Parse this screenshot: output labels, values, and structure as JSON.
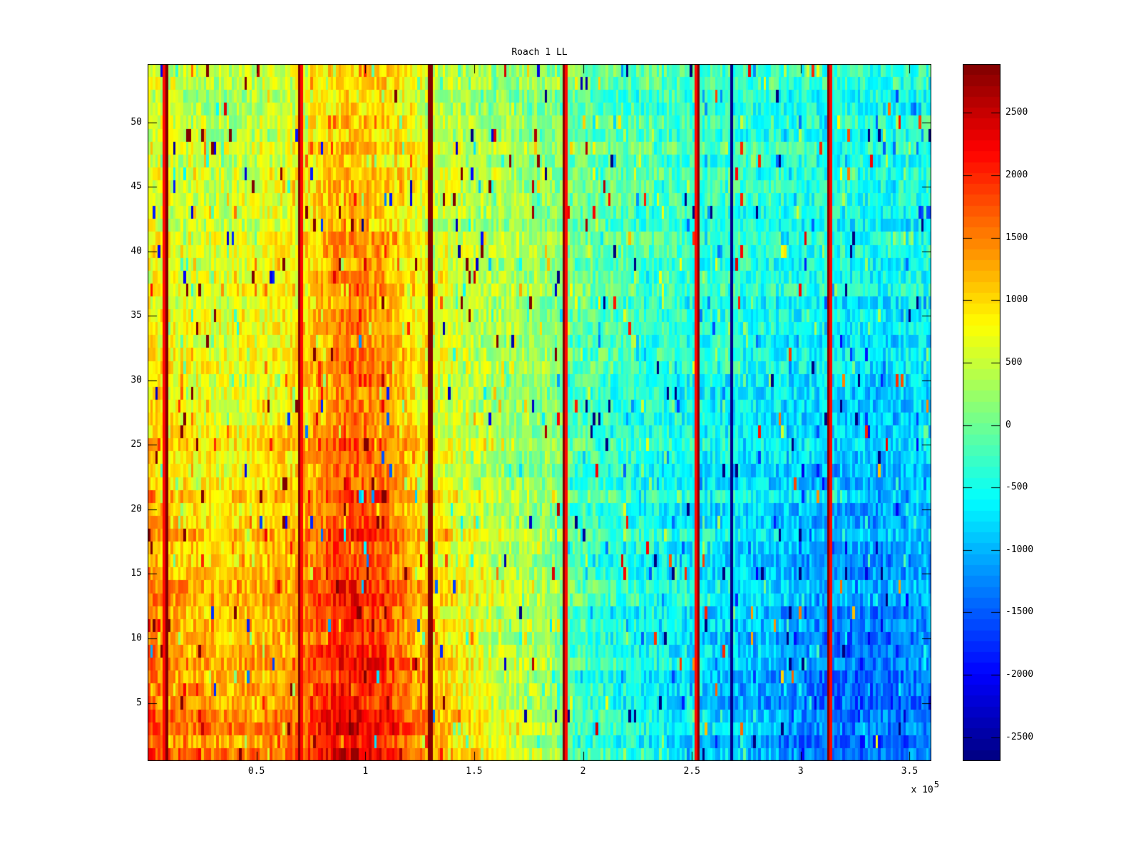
{
  "figure": {
    "title": "Roach 1 LL",
    "background_color": "#ffffff",
    "axis_color": "#000000"
  },
  "x_axis": {
    "tick_labels": [
      "0.5",
      "1",
      "1.5",
      "2",
      "2.5",
      "3",
      "3.5"
    ],
    "tick_values": [
      50000,
      100000,
      150000,
      200000,
      250000,
      300000,
      350000
    ],
    "range": [
      0,
      360000
    ],
    "exponent_prefix": "x 10",
    "exponent": "5"
  },
  "y_axis": {
    "tick_labels": [
      "5",
      "10",
      "15",
      "20",
      "25",
      "30",
      "35",
      "40",
      "45",
      "50"
    ],
    "tick_values": [
      5,
      10,
      15,
      20,
      25,
      30,
      35,
      40,
      45,
      50
    ],
    "range": [
      0.5,
      54.5
    ]
  },
  "colorbar": {
    "tick_labels": [
      "2500",
      "2000",
      "1500",
      "1000",
      "500",
      "0",
      "-500",
      "-1000",
      "-1500",
      "-2000",
      "-2500"
    ],
    "tick_values": [
      2500,
      2000,
      1500,
      1000,
      500,
      0,
      -500,
      -1000,
      -1500,
      -2000,
      -2500
    ],
    "value_range": [
      -2690,
      2890
    ],
    "colormap": "jet",
    "steps": 64
  },
  "chart_data": {
    "type": "heatmap",
    "title": "Roach 1 LL",
    "xlabel": "",
    "ylabel": "",
    "x_range": [
      0,
      360000
    ],
    "y_range": [
      0.5,
      54.5
    ],
    "n_rows": 54,
    "n_cols": 308,
    "colormap": "jet",
    "color_range": [
      -2690,
      2890
    ],
    "legend": "colorbar-right",
    "grid": false,
    "value_field": {
      "comment": "coarse mean field of the heatmap, bilinearly interpolated; x_nodes are fractions of plot width (left=0), y_nodes are fractions of plot height (top=0); values in colorbar units",
      "x_nodes": [
        0,
        0.02,
        0.1,
        0.19,
        0.25,
        0.3,
        0.36,
        0.44,
        0.52,
        0.54,
        0.62,
        0.7,
        0.74,
        0.8,
        0.87,
        0.94,
        1.0
      ],
      "y_nodes": [
        0,
        0.1667,
        0.3333,
        0.5,
        0.6667,
        0.8333,
        1.0
      ],
      "values": [
        [
          650,
          520,
          320,
          600,
          1050,
          1000,
          500,
          250,
          120,
          20,
          -120,
          -250,
          -280,
          -330,
          -380,
          -390,
          -350
        ],
        [
          700,
          560,
          420,
          700,
          1200,
          1100,
          560,
          290,
          140,
          0,
          -160,
          -300,
          -340,
          -400,
          -470,
          -490,
          -440
        ],
        [
          850,
          700,
          550,
          850,
          1420,
          1300,
          640,
          330,
          160,
          -40,
          -220,
          -380,
          -430,
          -500,
          -590,
          -630,
          -560
        ],
        [
          1150,
          950,
          700,
          1000,
          1700,
          1550,
          750,
          400,
          180,
          -80,
          -300,
          -470,
          -530,
          -620,
          -740,
          -800,
          -710
        ],
        [
          1450,
          1200,
          980,
          1200,
          1950,
          1750,
          900,
          480,
          220,
          -120,
          -380,
          -570,
          -650,
          -780,
          -950,
          -1020,
          -900
        ],
        [
          1700,
          1400,
          1180,
          1400,
          2150,
          1950,
          1100,
          560,
          260,
          -160,
          -460,
          -680,
          -800,
          -980,
          -1250,
          -1300,
          -1130
        ],
        [
          1900,
          1600,
          1350,
          1550,
          2350,
          2100,
          1300,
          650,
          300,
          -200,
          -550,
          -800,
          -950,
          -1200,
          -1500,
          -1520,
          -1350
        ]
      ]
    },
    "noise": {
      "seed": 42,
      "cell_amplitude": 420,
      "spike_probability": 0.1,
      "spike_amplitude": 900,
      "outlier_probability": 0.01,
      "outlier_low": -2800,
      "outlier_high": 2500,
      "row_offset_amplitude": 160
    },
    "stripes": [
      {
        "x_frac": 0.0237,
        "value": 2860,
        "halo": 2150
      },
      {
        "x_frac": 0.1938,
        "value": 2860,
        "halo": 2150
      },
      {
        "x_frac": 0.3603,
        "value": 2860,
        "halo": 2150
      },
      {
        "x_frac": 0.5323,
        "value": 2860,
        "halo": 2150
      },
      {
        "x_frac": 0.7016,
        "value": 2860,
        "halo": 2150
      },
      {
        "x_frac": 0.8699,
        "value": 2860,
        "halo": 2150
      },
      {
        "x_frac": 0.7443,
        "value": -2620,
        "halo": -2620
      }
    ]
  }
}
